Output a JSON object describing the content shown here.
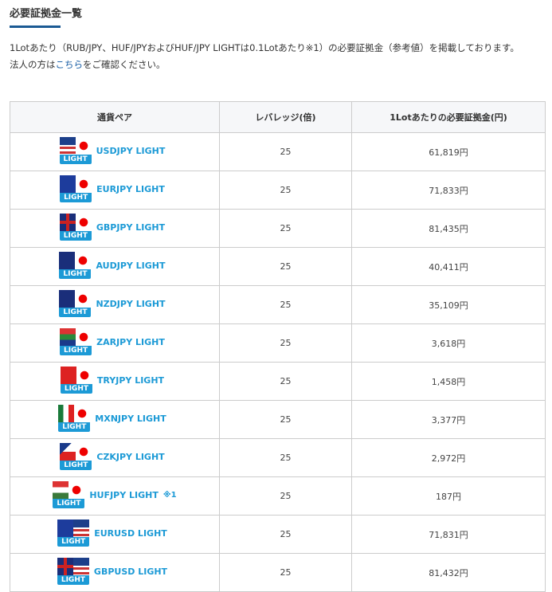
{
  "title": "必要証拠金一覧",
  "desc": {
    "line1": "1Lotあたり（RUB/JPY、HUF/JPYおよびHUF/JPY LIGHTは0.1Lotあたり※1）の必要証拠金（参考値）を掲載しております。",
    "line2_pre": "法人の方は",
    "line2_link": "こちら",
    "line2_post": "をご確認ください。"
  },
  "table": {
    "headers": [
      "通貨ペア",
      "レバレッジ(倍)",
      "1Lotあたりの必要証拠金(円)"
    ],
    "badge": "LIGHT",
    "rows": [
      {
        "base": "USD",
        "quote": "JPY",
        "pair": "USDJPY LIGHT",
        "note": "",
        "leverage": "25",
        "margin": "61,819円"
      },
      {
        "base": "EUR",
        "quote": "JPY",
        "pair": "EURJPY LIGHT",
        "note": "",
        "leverage": "25",
        "margin": "71,833円"
      },
      {
        "base": "GBP",
        "quote": "JPY",
        "pair": "GBPJPY LIGHT",
        "note": "",
        "leverage": "25",
        "margin": "81,435円"
      },
      {
        "base": "AUD",
        "quote": "JPY",
        "pair": "AUDJPY LIGHT",
        "note": "",
        "leverage": "25",
        "margin": "40,411円"
      },
      {
        "base": "NZD",
        "quote": "JPY",
        "pair": "NZDJPY LIGHT",
        "note": "",
        "leverage": "25",
        "margin": "35,109円"
      },
      {
        "base": "ZAR",
        "quote": "JPY",
        "pair": "ZARJPY LIGHT",
        "note": "",
        "leverage": "25",
        "margin": "3,618円"
      },
      {
        "base": "TRY",
        "quote": "JPY",
        "pair": "TRYJPY LIGHT",
        "note": "",
        "leverage": "25",
        "margin": "1,458円"
      },
      {
        "base": "MXN",
        "quote": "JPY",
        "pair": "MXNJPY LIGHT",
        "note": "",
        "leverage": "25",
        "margin": "3,377円"
      },
      {
        "base": "CZK",
        "quote": "JPY",
        "pair": "CZKJPY LIGHT",
        "note": "",
        "leverage": "25",
        "margin": "2,972円"
      },
      {
        "base": "HUF",
        "quote": "JPY",
        "pair": "HUFJPY LIGHT",
        "note": "※1",
        "leverage": "25",
        "margin": "187円"
      },
      {
        "base": "EUR",
        "quote": "USD",
        "pair": "EURUSD LIGHT",
        "note": "",
        "leverage": "25",
        "margin": "71,831円"
      },
      {
        "base": "GBP",
        "quote": "USD",
        "pair": "GBPUSD LIGHT",
        "note": "",
        "leverage": "25",
        "margin": "81,432円"
      }
    ]
  }
}
